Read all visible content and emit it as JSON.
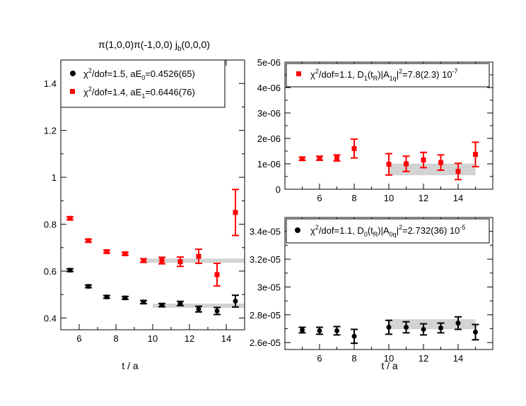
{
  "colors": {
    "black": "#000000",
    "red": "#ff0000",
    "band": "#d3d3d3"
  },
  "chart_data": [
    {
      "type": "scatter",
      "title": "π(1,0,0)π(-1,0,0)  jb(0,0,0)",
      "xlabel": "t / a",
      "ylabel": "",
      "xlim": [
        5,
        15
      ],
      "ylim": [
        0.35,
        1.5
      ],
      "xticks": [
        6,
        8,
        10,
        12,
        14
      ],
      "yticks": [
        0.4,
        0.6,
        0.8,
        1.0,
        1.2,
        1.4
      ],
      "ytick_labels": [
        "0.4",
        "0.6",
        "0.8",
        "1",
        "1.2",
        "1.4"
      ],
      "legend_position": "top-left",
      "series": [
        {
          "name": "χ2/dof=1.5,  aE0=0.4526(65)",
          "color": "#000000",
          "marker": "circle",
          "x": [
            5.5,
            6.5,
            7.5,
            8.5,
            9.5,
            10.5,
            11.5,
            12.5,
            13.5,
            14.5
          ],
          "y": [
            0.604,
            0.535,
            0.49,
            0.486,
            0.468,
            0.455,
            0.462,
            0.438,
            0.43,
            0.472
          ],
          "err": [
            0.006,
            0.006,
            0.006,
            0.006,
            0.007,
            0.007,
            0.009,
            0.012,
            0.015,
            0.025
          ],
          "fit": {
            "value": 0.4526,
            "error": 0.0065,
            "from": 10,
            "to": 15
          }
        },
        {
          "name": "χ2/dof=1.4,  aE1=0.6446(76)",
          "color": "#ff0000",
          "marker": "square",
          "x": [
            5.5,
            6.5,
            7.5,
            8.5,
            9.5,
            10.5,
            11.5,
            12.5,
            13.5,
            14.5
          ],
          "y": [
            0.825,
            0.73,
            0.683,
            0.674,
            0.645,
            0.645,
            0.64,
            0.663,
            0.585,
            0.85
          ],
          "err": [
            0.006,
            0.006,
            0.006,
            0.006,
            0.008,
            0.014,
            0.02,
            0.03,
            0.048,
            0.098
          ],
          "fit": {
            "value": 0.6446,
            "error": 0.0076,
            "from": 9.5,
            "to": 15
          }
        }
      ]
    },
    {
      "type": "scatter",
      "title": "",
      "xlabel": "",
      "ylabel": "",
      "xlim": [
        4,
        16
      ],
      "ylim": [
        0,
        5e-06
      ],
      "xticks": [
        6,
        8,
        10,
        12,
        14
      ],
      "yticks": [
        0,
        1e-06,
        2e-06,
        3e-06,
        4e-06,
        5e-06
      ],
      "ytick_labels": [
        "0",
        "1e-06",
        "2e-06",
        "3e-06",
        "4e-06",
        "5e-06"
      ],
      "legend_position": "top",
      "series": [
        {
          "name": "χ2/dof=1.1, D1(tR)|A1q|2=7.8(2.3) 10-7",
          "color": "#ff0000",
          "marker": "square",
          "x": [
            5,
            6,
            7,
            8,
            10,
            11,
            12,
            13,
            14,
            15
          ],
          "y": [
            1.2e-06,
            1.22e-06,
            1.23e-06,
            1.6e-06,
            9.8e-07,
            1e-06,
            1.15e-06,
            1.05e-06,
            7e-07,
            1.37e-06
          ],
          "err": [
            6e-08,
            8e-08,
            1.2e-07,
            3.7e-07,
            4.2e-07,
            3e-07,
            3e-07,
            3e-07,
            3.2e-07,
            4.8e-07
          ],
          "fit": {
            "value": 7.8e-07,
            "error": 2.3e-07,
            "from": 10,
            "to": 15
          }
        }
      ]
    },
    {
      "type": "scatter",
      "title": "",
      "xlabel": "t / a",
      "ylabel": "",
      "xlim": [
        4,
        16
      ],
      "ylim": [
        2.55e-05,
        3.5e-05
      ],
      "xticks": [
        6,
        8,
        10,
        12,
        14
      ],
      "yticks": [
        2.6e-05,
        2.8e-05,
        3e-05,
        3.2e-05,
        3.4e-05
      ],
      "ytick_labels": [
        "2.6e-05",
        "2.8e-05",
        "3e-05",
        "3.2e-05",
        "3.4e-05"
      ],
      "legend_position": "top",
      "series": [
        {
          "name": "χ2/dof=1.1, D0(tR)|A0q|2=2.732(36) 10-5",
          "color": "#000000",
          "marker": "circle",
          "x": [
            5,
            6,
            7,
            8,
            10,
            11,
            12,
            13,
            14,
            15
          ],
          "y": [
            2.69e-05,
            2.685e-05,
            2.685e-05,
            2.645e-05,
            2.71e-05,
            2.71e-05,
            2.695e-05,
            2.705e-05,
            2.74e-05,
            2.675e-05
          ],
          "err": [
            2e-07,
            2.5e-07,
            3e-07,
            5e-07,
            5e-07,
            4e-07,
            4e-07,
            3.5e-07,
            4.5e-07,
            5.5e-07
          ],
          "fit": {
            "value": 2.732e-05,
            "error": 3.6e-07,
            "from": 10,
            "to": 15
          }
        }
      ]
    }
  ]
}
